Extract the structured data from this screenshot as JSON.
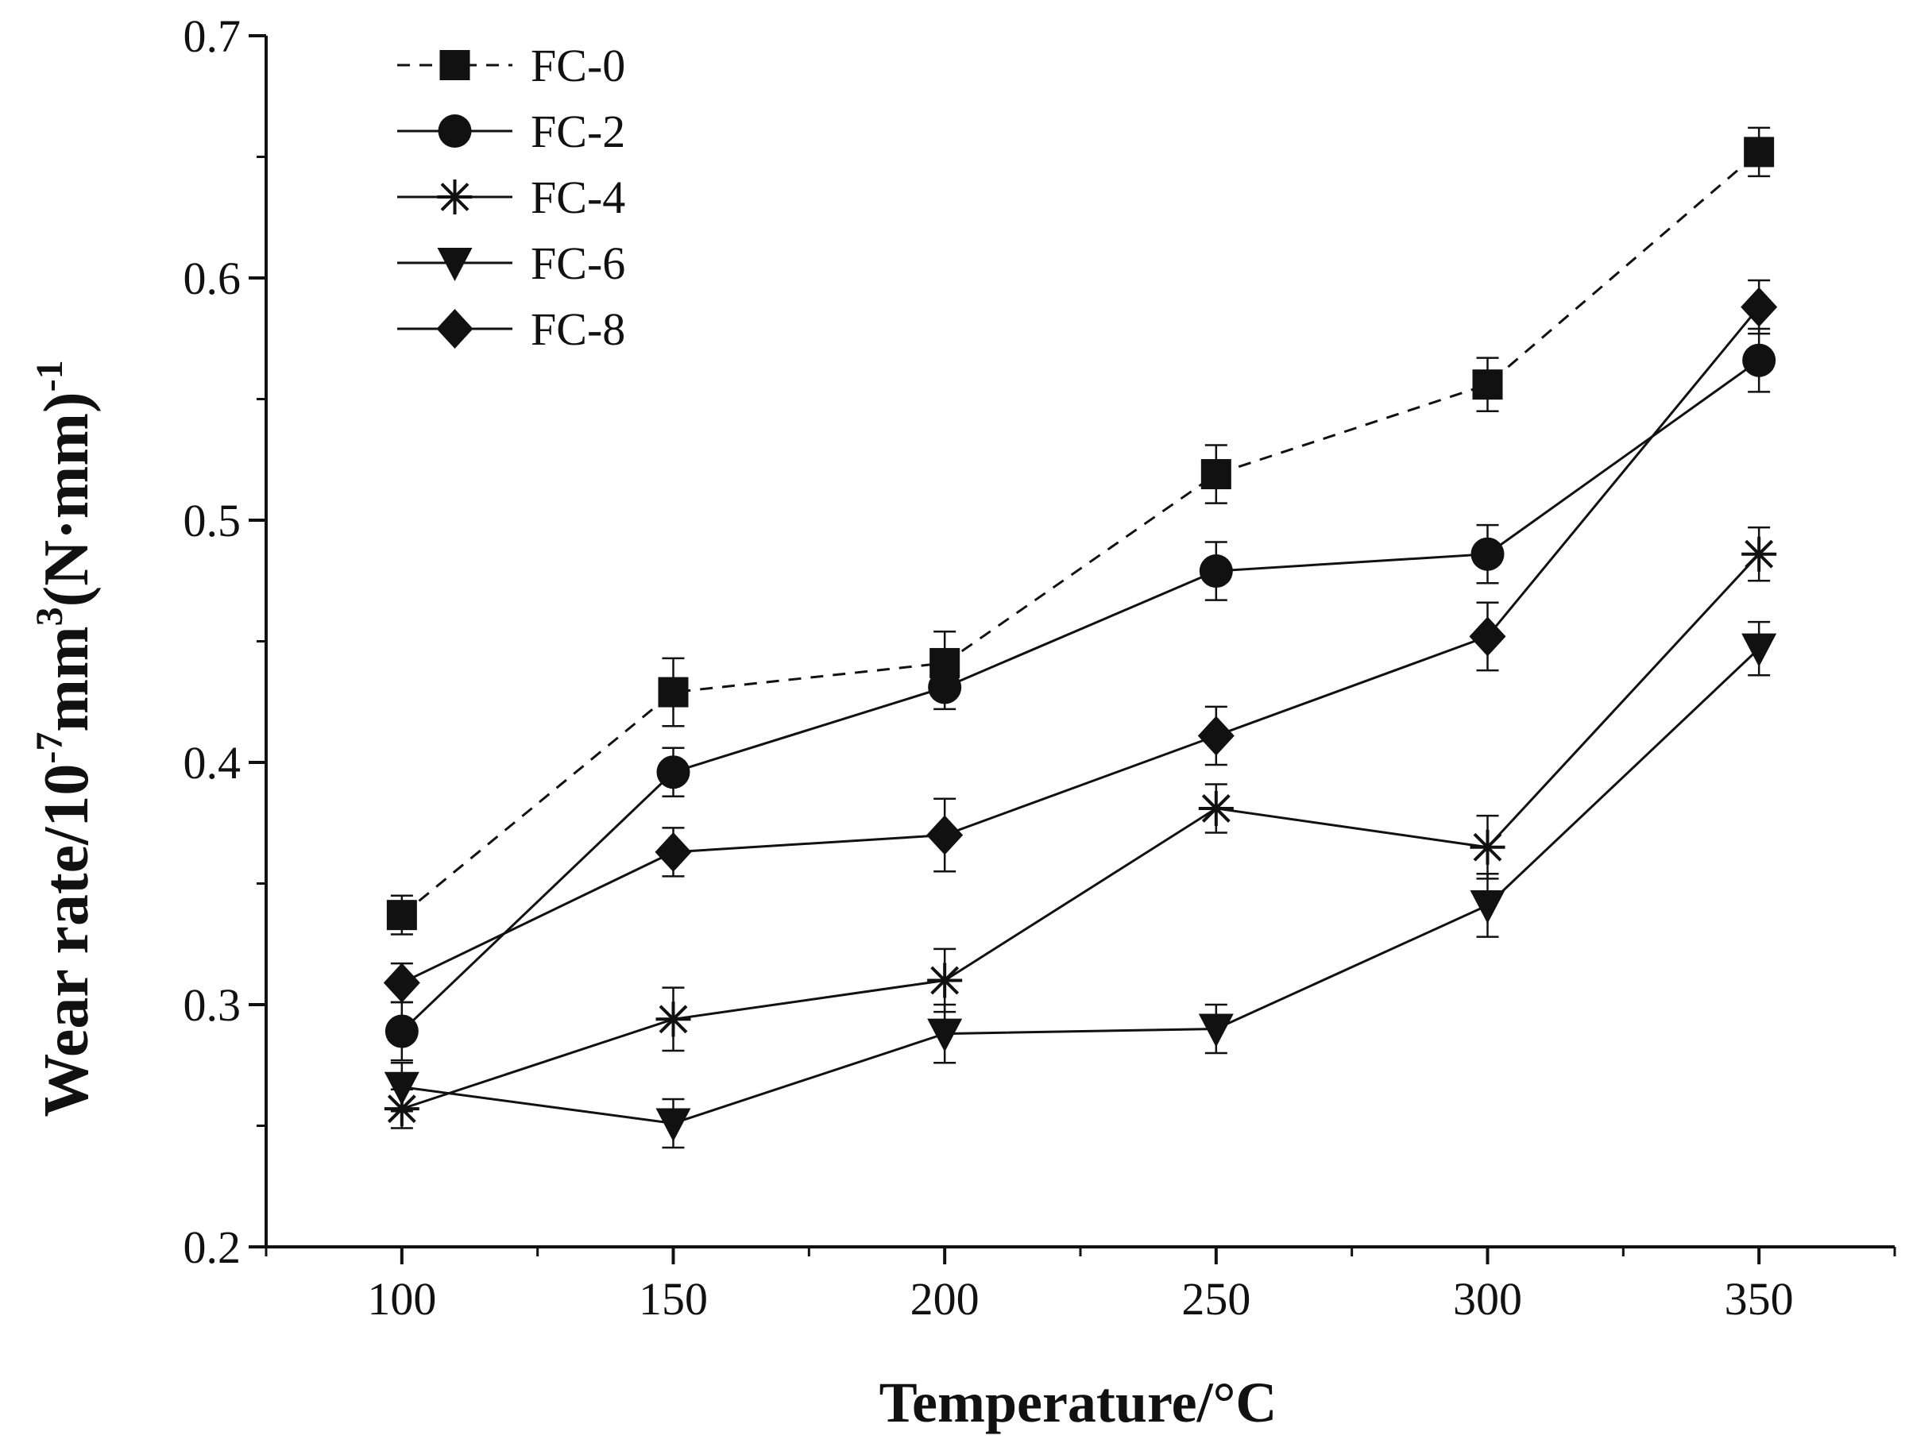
{
  "chart_data": {
    "type": "line",
    "title": "",
    "xlabel": "Temperature/°C",
    "ylabel": {
      "base": "Wear rate/10",
      "exp1": "-7",
      "mid": "mm",
      "exp2": "3",
      "tail": "(N·mm)",
      "exp3": "-1"
    },
    "x": [
      100,
      150,
      200,
      250,
      300,
      350
    ],
    "xlim": [
      75,
      375
    ],
    "ylim": [
      0.2,
      0.7
    ],
    "xticks": [
      "100",
      "150",
      "200",
      "250",
      "300",
      "350"
    ],
    "yticks": [
      "0.2",
      "0.3",
      "0.4",
      "0.5",
      "0.6",
      "0.7"
    ],
    "grid": false,
    "legend_position": "top-left",
    "series": [
      {
        "name": "FC-0",
        "marker": "square",
        "dash": true,
        "values": [
          0.337,
          0.429,
          0.441,
          0.519,
          0.556,
          0.652
        ],
        "errors": [
          0.008,
          0.014,
          0.013,
          0.012,
          0.011,
          0.01
        ]
      },
      {
        "name": "FC-2",
        "marker": "circle",
        "dash": false,
        "values": [
          0.289,
          0.396,
          0.431,
          0.479,
          0.486,
          0.566
        ],
        "errors": [
          0.012,
          0.01,
          0.009,
          0.012,
          0.012,
          0.013
        ]
      },
      {
        "name": "FC-4",
        "marker": "asterisk",
        "dash": false,
        "values": [
          0.257,
          0.294,
          0.31,
          0.381,
          0.365,
          0.486
        ],
        "errors": [
          0.008,
          0.013,
          0.013,
          0.01,
          0.013,
          0.011
        ]
      },
      {
        "name": "FC-6",
        "marker": "triangle-down",
        "dash": false,
        "values": [
          0.266,
          0.251,
          0.288,
          0.29,
          0.341,
          0.447
        ],
        "errors": [
          0.01,
          0.01,
          0.012,
          0.01,
          0.013,
          0.011
        ]
      },
      {
        "name": "FC-8",
        "marker": "diamond",
        "dash": false,
        "values": [
          0.309,
          0.363,
          0.37,
          0.411,
          0.452,
          0.588
        ],
        "errors": [
          0.008,
          0.01,
          0.015,
          0.012,
          0.014,
          0.011
        ]
      }
    ]
  },
  "colors": {
    "ink": "#111111",
    "background": "#ffffff"
  }
}
